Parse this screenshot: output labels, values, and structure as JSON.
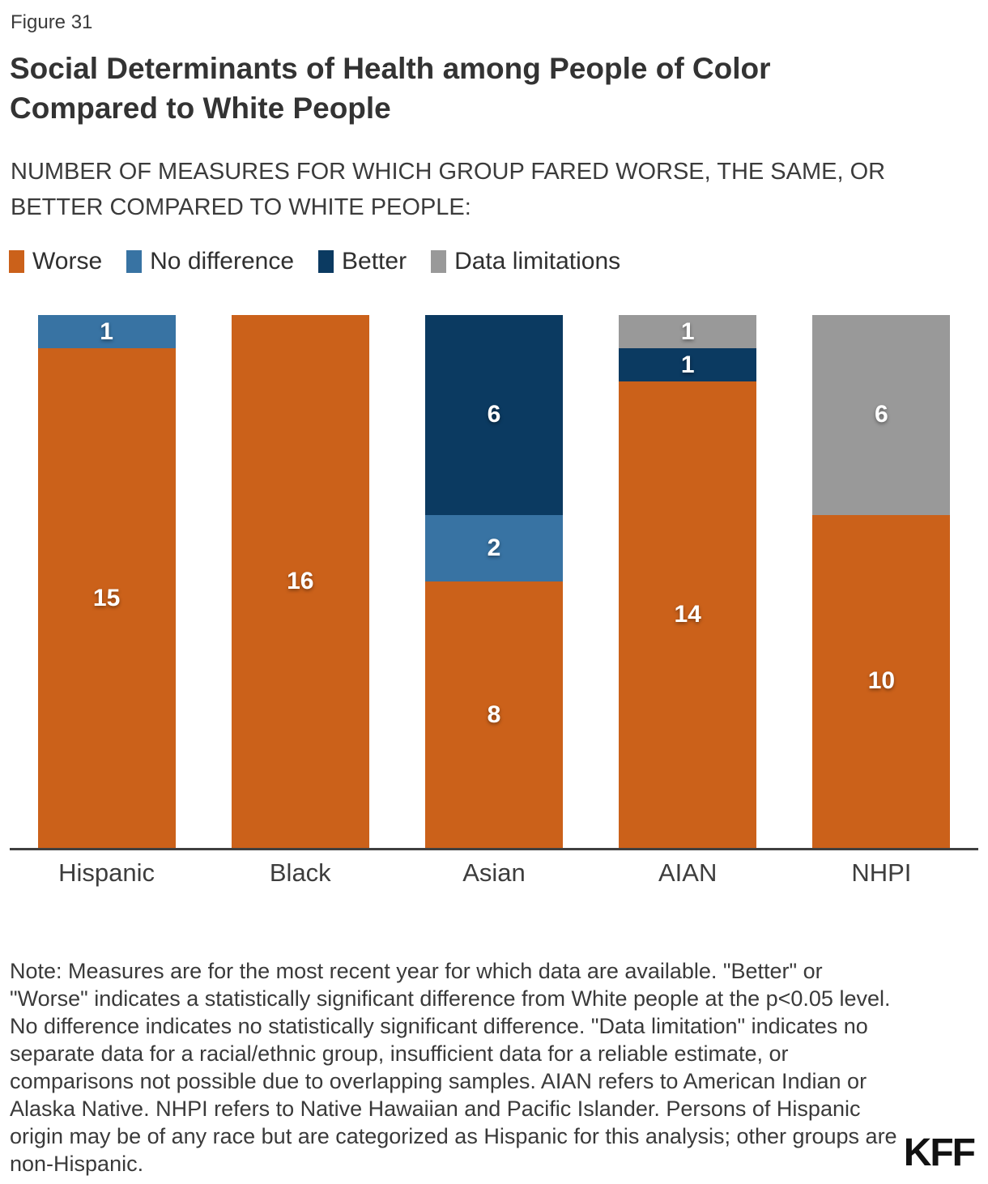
{
  "figure_label": "Figure 31",
  "title": "Social Determinants of Health among People of Color Compared to White People",
  "subtitle": "NUMBER OF MEASURES FOR WHICH GROUP FARED WORSE, THE SAME, OR BETTER COMPARED TO WHITE PEOPLE:",
  "colors": {
    "worse": "#CB611A",
    "no_difference": "#3873A3",
    "better": "#0B3A61",
    "data_limitations": "#999999",
    "axis_line": "#404040"
  },
  "legend": [
    {
      "label": "Worse",
      "color": "#CB611A"
    },
    {
      "label": "No difference",
      "color": "#3873A3"
    },
    {
      "label": "Better",
      "color": "#0B3A61"
    },
    {
      "label": "Data limitations",
      "color": "#999999"
    }
  ],
  "chart_data": {
    "type": "bar",
    "stacked": true,
    "title": "Social Determinants of Health among People of Color Compared to White People",
    "subtitle": "NUMBER OF MEASURES FOR WHICH GROUP FARED WORSE, THE SAME, OR BETTER COMPARED TO WHITE PEOPLE:",
    "categories": [
      "Hispanic",
      "Black",
      "Asian",
      "AIAN",
      "NHPI"
    ],
    "series": [
      {
        "name": "Worse",
        "color": "#CB611A",
        "values": [
          15,
          16,
          8,
          14,
          10
        ]
      },
      {
        "name": "No difference",
        "color": "#3873A3",
        "values": [
          1,
          0,
          2,
          0,
          0
        ]
      },
      {
        "name": "Better",
        "color": "#0B3A61",
        "values": [
          0,
          0,
          6,
          1,
          0
        ]
      },
      {
        "name": "Data limitations",
        "color": "#999999",
        "values": [
          0,
          0,
          0,
          1,
          6
        ]
      }
    ],
    "totals": [
      16,
      16,
      16,
      16,
      16
    ],
    "ylim": [
      0,
      16
    ],
    "grid": false,
    "y_axis_visible": false,
    "value_label_style": "white bold centered in each segment",
    "legend_position": "top-left"
  },
  "note": "Note: Measures are for the most recent year for which data are available. \"Better\" or \"Worse\" indicates a statistically significant difference from White people at the p<0.05 level. No difference indicates no statistically significant difference. \"Data limitation\" indicates no separate data for a racial/ethnic group, insufficient data for a reliable estimate, or comparisons not possible due to overlapping samples. AIAN refers to American Indian or Alaska Native. NHPI refers to Native Hawaiian and Pacific Islander. Persons of Hispanic origin may be of any race but are categorized as Hispanic for this analysis; other groups are non-Hispanic.",
  "logo_text": "KFF"
}
